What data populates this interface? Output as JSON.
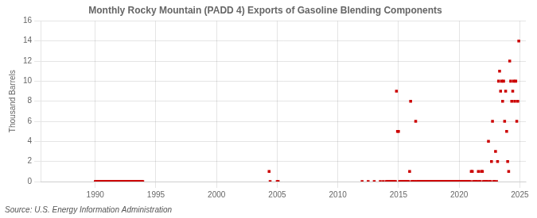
{
  "chart_data": {
    "type": "scatter",
    "title": "Monthly Rocky Mountain (PADD 4) Exports of Gasoline Blending Components",
    "ylabel": "Thousand Barrels",
    "annotations": [
      "Source: U.S. Energy Information Administration"
    ],
    "color": "#cc0000",
    "marker": "square",
    "grid": true,
    "xlim": [
      1985.5,
      2025.5
    ],
    "ylim": [
      0,
      16
    ],
    "xticks": [
      1990,
      1995,
      2000,
      2005,
      2010,
      2015,
      2020,
      2025
    ],
    "yticks": [
      0,
      2,
      4,
      6,
      8,
      10,
      12,
      14,
      16
    ],
    "x": [
      1990.0,
      1990.083,
      1990.167,
      1990.25,
      1990.333,
      1990.417,
      1990.5,
      1990.583,
      1990.667,
      1990.75,
      1990.833,
      1990.917,
      1991.0,
      1991.083,
      1991.167,
      1991.25,
      1991.333,
      1991.417,
      1991.5,
      1991.583,
      1991.667,
      1991.75,
      1991.833,
      1991.917,
      1992.0,
      1992.083,
      1992.167,
      1992.25,
      1992.333,
      1992.417,
      1992.5,
      1992.583,
      1992.667,
      1992.75,
      1992.833,
      1992.917,
      1993.0,
      1993.083,
      1993.167,
      1993.25,
      1993.333,
      1993.417,
      1993.5,
      1993.583,
      1993.667,
      1993.75,
      1993.833,
      1993.917,
      2004.333,
      2004.417,
      2005.0,
      2005.083,
      2012.0,
      2012.5,
      2013.0,
      2013.5,
      2013.75,
      2014.0,
      2014.083,
      2014.167,
      2014.25,
      2014.333,
      2014.417,
      2014.5,
      2014.583,
      2014.667,
      2014.75,
      2014.833,
      2014.917,
      2015.0,
      2015.083,
      2015.167,
      2015.25,
      2015.333,
      2015.417,
      2015.5,
      2015.583,
      2015.667,
      2015.75,
      2015.833,
      2015.917,
      2016.0,
      2016.083,
      2016.167,
      2016.25,
      2016.333,
      2016.417,
      2016.5,
      2016.583,
      2016.667,
      2016.75,
      2016.833,
      2016.917,
      2017.0,
      2017.083,
      2017.167,
      2017.25,
      2017.333,
      2017.417,
      2017.5,
      2017.583,
      2017.667,
      2017.75,
      2017.833,
      2017.917,
      2018.0,
      2018.083,
      2018.167,
      2018.25,
      2018.333,
      2018.417,
      2018.5,
      2018.583,
      2018.667,
      2018.75,
      2018.833,
      2018.917,
      2019.0,
      2019.083,
      2019.167,
      2019.25,
      2019.333,
      2019.417,
      2019.5,
      2019.583,
      2019.667,
      2019.75,
      2019.833,
      2019.917,
      2020.0,
      2020.083,
      2020.167,
      2020.25,
      2020.333,
      2020.417,
      2020.5,
      2020.583,
      2020.667,
      2020.75,
      2020.833,
      2020.917,
      2021.0,
      2021.083,
      2021.167,
      2021.25,
      2021.333,
      2021.417,
      2021.5,
      2021.583,
      2021.667,
      2021.75,
      2021.833,
      2021.917,
      2022.0,
      2022.083,
      2022.167,
      2022.25,
      2022.333,
      2022.417,
      2022.5,
      2022.583,
      2022.667,
      2022.75,
      2022.833,
      2022.917,
      2023.0,
      2023.083,
      2023.167,
      2023.25,
      2023.333,
      2023.417,
      2023.5,
      2023.583,
      2023.667,
      2023.75,
      2023.833,
      2023.917,
      2024.0,
      2024.083,
      2024.167,
      2024.25,
      2024.333,
      2024.417,
      2024.5,
      2024.583,
      2024.667,
      2024.75,
      2024.833,
      2024.917
    ],
    "values": [
      0,
      0,
      0,
      0,
      0,
      0,
      0,
      0,
      0,
      0,
      0,
      0,
      0,
      0,
      0,
      0,
      0,
      0,
      0,
      0,
      0,
      0,
      0,
      0,
      0,
      0,
      0,
      0,
      0,
      0,
      0,
      0,
      0,
      0,
      0,
      0,
      0,
      0,
      0,
      0,
      0,
      0,
      0,
      0,
      0,
      0,
      0,
      0,
      1,
      0,
      0,
      0,
      0,
      0,
      0,
      0,
      0,
      0,
      0,
      0,
      0,
      0,
      0,
      0,
      0,
      0,
      0,
      9,
      5,
      5,
      0,
      0,
      0,
      0,
      0,
      0,
      0,
      0,
      0,
      0,
      1,
      8,
      0,
      0,
      0,
      0,
      6,
      0,
      0,
      0,
      0,
      0,
      0,
      0,
      0,
      0,
      0,
      0,
      0,
      0,
      0,
      0,
      0,
      0,
      0,
      0,
      0,
      0,
      0,
      0,
      0,
      0,
      0,
      0,
      0,
      0,
      0,
      0,
      0,
      0,
      0,
      0,
      0,
      0,
      0,
      0,
      0,
      0,
      0,
      0,
      0,
      0,
      0,
      0,
      0,
      0,
      0,
      0,
      0,
      0,
      0,
      1,
      1,
      0,
      0,
      0,
      0,
      0,
      1,
      0,
      0,
      1,
      1,
      0,
      0,
      0,
      0,
      0,
      4,
      0,
      0,
      2,
      6,
      0,
      0,
      3,
      0,
      2,
      10,
      11,
      9,
      10,
      8,
      10,
      6,
      9,
      5,
      2,
      1,
      12,
      10,
      8,
      9,
      10,
      8,
      10,
      6,
      8,
      14
    ]
  }
}
